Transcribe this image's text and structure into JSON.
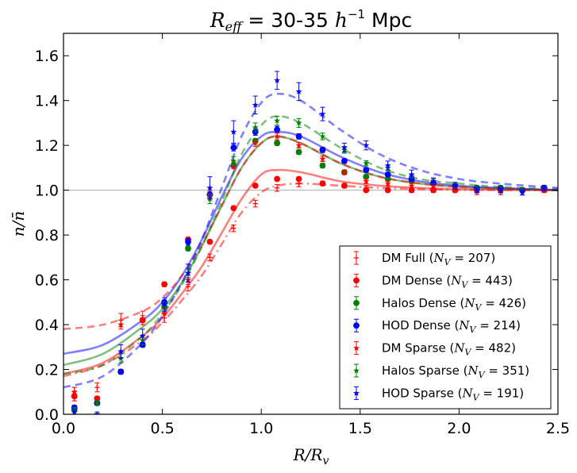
{
  "chart_data": {
    "type": "line",
    "title": "R_eff = 30-35 h⁻¹ Mpc",
    "title_parts": {
      "r": "R",
      "sub": "eff",
      "mid": " = 30-35 ",
      "h": "h",
      "sup": "−1",
      "unit": " Mpc"
    },
    "xlabel": "R/R_v",
    "xlabel_parts": {
      "a": "R/R",
      "sub": "v"
    },
    "ylabel": "n/n̄",
    "xlim": [
      0.0,
      2.5
    ],
    "ylim": [
      0.0,
      1.7
    ],
    "xticks": [
      "0.0",
      "0.5",
      "1.0",
      "1.5",
      "2.0",
      "2.5"
    ],
    "yticks": [
      "0.0",
      "0.2",
      "0.4",
      "0.6",
      "0.8",
      "1.0",
      "1.2",
      "1.4",
      "1.6"
    ],
    "reference_line": 1.0,
    "legend_position": "lower-right",
    "colors": {
      "red": "#ff0000",
      "green": "#008000",
      "blue": "#0000ff",
      "grey": "#bbbbbb"
    },
    "series": [
      {
        "name": "DM Full (N_V = 207)",
        "label_pre": "DM Full (",
        "label_post": " = 207)",
        "color": "#ff0000",
        "marker": "plus",
        "x": [
          0.055,
          0.17,
          0.29,
          0.4,
          0.51,
          0.63,
          0.74,
          0.86,
          0.97,
          1.08,
          1.19,
          1.31,
          1.42,
          1.53,
          1.64,
          1.76,
          1.87,
          1.98,
          2.09,
          2.21,
          2.32,
          2.43
        ],
        "y": [
          0.09,
          0.12,
          0.42,
          0.43,
          0.43,
          0.57,
          0.7,
          0.83,
          0.94,
          1.01,
          1.03,
          1.03,
          1.02,
          1.01,
          1.01,
          1.0,
          1.0,
          1.0,
          0.99,
          0.99,
          1.0,
          1.0
        ],
        "err": [
          0.03,
          0.02,
          0.03,
          0.03,
          0.02,
          0.02,
          0.015,
          0.015,
          0.015,
          0.015,
          0.015,
          0.01,
          0.01,
          0.01,
          0.01,
          0.01,
          0.01,
          0.01,
          0.01,
          0.01,
          0.01,
          0.01
        ]
      },
      {
        "name": "DM Dense (N_V = 443)",
        "label_pre": "DM Dense (",
        "label_post": " = 443)",
        "color": "#ff0000",
        "marker": "circle",
        "x": [
          0.055,
          0.17,
          0.29,
          0.4,
          0.51,
          0.63,
          0.74,
          0.86,
          0.97,
          1.08,
          1.19,
          1.31,
          1.42,
          1.53,
          1.64,
          1.76,
          1.87,
          1.98,
          2.09,
          2.21,
          2.32,
          2.43
        ],
        "y": [
          0.08,
          0.07,
          0.19,
          0.42,
          0.58,
          0.78,
          0.77,
          0.92,
          1.02,
          1.05,
          1.05,
          1.03,
          1.02,
          1.0,
          1.0,
          1.0,
          1.0,
          1.0,
          1.0,
          1.0,
          1.0,
          1.0
        ],
        "err": [
          0.02,
          0.01,
          0.01,
          0.01,
          0.01,
          0.01,
          0.008,
          0.008,
          0.008,
          0.008,
          0.008,
          0.008,
          0.006,
          0.006,
          0.006,
          0.006,
          0.006,
          0.006,
          0.006,
          0.006,
          0.006,
          0.006
        ]
      },
      {
        "name": "Halos Dense (N_V = 426)",
        "label_pre": "Halos Dense (",
        "label_post": " = 426)",
        "color": "#008000",
        "marker": "circle",
        "x": [
          0.055,
          0.17,
          0.29,
          0.4,
          0.51,
          0.63,
          0.74,
          0.86,
          0.97,
          1.08,
          1.19,
          1.31,
          1.42,
          1.53,
          1.64,
          1.76,
          1.87,
          1.98,
          2.09,
          2.21,
          2.32,
          2.43
        ],
        "y": [
          0.02,
          0.05,
          0.19,
          0.31,
          0.48,
          0.74,
          0.98,
          1.11,
          1.22,
          1.21,
          1.17,
          1.11,
          1.08,
          1.06,
          1.05,
          1.04,
          1.03,
          1.02,
          1.01,
          1.01,
          1.0,
          1.01
        ],
        "err": [
          0.01,
          0.01,
          0.01,
          0.01,
          0.01,
          0.01,
          0.01,
          0.01,
          0.01,
          0.01,
          0.01,
          0.01,
          0.008,
          0.008,
          0.008,
          0.008,
          0.008,
          0.008,
          0.008,
          0.008,
          0.008,
          0.008
        ]
      },
      {
        "name": "HOD Dense (N_V = 214)",
        "label_pre": "HOD Dense (",
        "label_post": " = 214)",
        "color": "#0000ff",
        "marker": "circle",
        "x": [
          0.055,
          0.17,
          0.29,
          0.4,
          0.51,
          0.63,
          0.74,
          0.86,
          0.97,
          1.08,
          1.19,
          1.31,
          1.42,
          1.53,
          1.64,
          1.76,
          1.87,
          1.98,
          2.09,
          2.21,
          2.32,
          2.43
        ],
        "y": [
          0.03,
          0.05,
          0.19,
          0.31,
          0.5,
          0.77,
          0.98,
          1.19,
          1.26,
          1.27,
          1.24,
          1.18,
          1.13,
          1.09,
          1.07,
          1.05,
          1.03,
          1.02,
          1.01,
          1.01,
          1.0,
          1.01
        ],
        "err": [
          0.01,
          0.01,
          0.01,
          0.01,
          0.01,
          0.015,
          0.015,
          0.015,
          0.015,
          0.015,
          0.012,
          0.012,
          0.01,
          0.01,
          0.01,
          0.01,
          0.01,
          0.01,
          0.01,
          0.01,
          0.01,
          0.01
        ]
      },
      {
        "name": "DM Sparse (N_V = 482)",
        "label_pre": "DM Sparse (",
        "label_post": " = 482)",
        "color": "#ff0000",
        "marker": "star",
        "x": [
          0.055,
          0.17,
          0.29,
          0.4,
          0.51,
          0.63,
          0.74,
          0.86,
          0.97,
          1.08,
          1.19,
          1.31,
          1.42,
          1.53,
          1.64,
          1.76,
          1.87,
          1.98,
          2.09,
          2.21,
          2.32,
          2.43
        ],
        "y": [
          0.1,
          0.07,
          0.4,
          0.42,
          0.45,
          0.6,
          0.98,
          1.11,
          1.21,
          1.24,
          1.2,
          1.14,
          1.08,
          1.04,
          1.03,
          1.02,
          1.02,
          1.01,
          1.01,
          1.0,
          1.0,
          1.0
        ],
        "err": [
          0.02,
          0.01,
          0.02,
          0.02,
          0.02,
          0.02,
          0.015,
          0.015,
          0.015,
          0.015,
          0.012,
          0.012,
          0.01,
          0.01,
          0.01,
          0.01,
          0.01,
          0.01,
          0.01,
          0.01,
          0.01,
          0.01
        ]
      },
      {
        "name": "Halos Sparse (N_V = 351)",
        "label_pre": "Halos Sparse (",
        "label_post": " = 351)",
        "color": "#008000",
        "marker": "star",
        "x": [
          0.055,
          0.17,
          0.29,
          0.4,
          0.51,
          0.63,
          0.74,
          0.86,
          0.97,
          1.08,
          1.19,
          1.31,
          1.42,
          1.53,
          1.64,
          1.76,
          1.87,
          1.98,
          2.09,
          2.21,
          2.32,
          2.43
        ],
        "y": [
          0.02,
          0.05,
          0.25,
          0.33,
          0.48,
          0.63,
          0.96,
          1.13,
          1.28,
          1.31,
          1.3,
          1.24,
          1.18,
          1.12,
          1.1,
          1.06,
          1.04,
          1.02,
          1.01,
          1.01,
          1.0,
          1.01
        ],
        "err": [
          0.01,
          0.01,
          0.02,
          0.02,
          0.02,
          0.02,
          0.02,
          0.02,
          0.02,
          0.02,
          0.02,
          0.015,
          0.015,
          0.012,
          0.012,
          0.01,
          0.01,
          0.01,
          0.01,
          0.01,
          0.01,
          0.01
        ]
      },
      {
        "name": "HOD Sparse (N_V = 191)",
        "label_pre": "HOD Sparse (",
        "label_post": " = 191)",
        "color": "#0000ff",
        "marker": "star",
        "x": [
          0.055,
          0.17,
          0.29,
          0.4,
          0.51,
          0.63,
          0.74,
          0.86,
          0.97,
          1.08,
          1.19,
          1.31,
          1.42,
          1.53,
          1.64,
          1.76,
          1.87,
          1.98,
          2.09,
          2.21,
          2.32,
          2.43
        ],
        "y": [
          0.01,
          0.0,
          0.28,
          0.35,
          0.49,
          0.63,
          1.01,
          1.26,
          1.38,
          1.49,
          1.44,
          1.34,
          1.19,
          1.2,
          1.11,
          1.07,
          1.04,
          1.02,
          1.0,
          1.0,
          0.99,
          1.01
        ],
        "err": [
          0.01,
          0.01,
          0.03,
          0.03,
          0.03,
          0.04,
          0.05,
          0.05,
          0.04,
          0.04,
          0.04,
          0.03,
          0.02,
          0.02,
          0.02,
          0.02,
          0.015,
          0.015,
          0.012,
          0.012,
          0.012,
          0.012
        ]
      }
    ],
    "model_curves": [
      {
        "name": "DM Full model",
        "color": "#ff0000",
        "style": "dashdot",
        "x": [
          0.0,
          0.2,
          0.4,
          0.5,
          0.6,
          0.7,
          0.8,
          0.9,
          1.0,
          1.08,
          1.2,
          1.4,
          1.6,
          1.8,
          2.0,
          2.2,
          2.5
        ],
        "y": [
          0.17,
          0.22,
          0.33,
          0.41,
          0.51,
          0.62,
          0.76,
          0.9,
          0.99,
          1.02,
          1.03,
          1.02,
          1.01,
          1.005,
          1.002,
          1.001,
          1.0
        ]
      },
      {
        "name": "DM Dense model",
        "color": "#ff0000",
        "style": "solid",
        "x": [
          0.0,
          0.2,
          0.4,
          0.5,
          0.6,
          0.7,
          0.8,
          0.9,
          1.0,
          1.08,
          1.2,
          1.4,
          1.6,
          1.8,
          2.0,
          2.2,
          2.5
        ],
        "y": [
          0.18,
          0.23,
          0.35,
          0.43,
          0.54,
          0.66,
          0.81,
          0.96,
          1.07,
          1.09,
          1.08,
          1.04,
          1.02,
          1.01,
          1.005,
          1.002,
          1.0
        ]
      },
      {
        "name": "Halos Dense model",
        "color": "#008000",
        "style": "solid",
        "x": [
          0.0,
          0.2,
          0.4,
          0.5,
          0.6,
          0.7,
          0.8,
          0.9,
          1.0,
          1.08,
          1.2,
          1.4,
          1.6,
          1.8,
          2.0,
          2.2,
          2.5
        ],
        "y": [
          0.22,
          0.27,
          0.39,
          0.47,
          0.59,
          0.75,
          0.93,
          1.1,
          1.21,
          1.24,
          1.21,
          1.12,
          1.06,
          1.03,
          1.015,
          1.008,
          1.0
        ]
      },
      {
        "name": "HOD Dense model",
        "color": "#0000ff",
        "style": "solid",
        "x": [
          0.0,
          0.2,
          0.4,
          0.5,
          0.6,
          0.7,
          0.8,
          0.9,
          1.0,
          1.08,
          1.2,
          1.4,
          1.6,
          1.8,
          2.0,
          2.2,
          2.5
        ],
        "y": [
          0.27,
          0.31,
          0.42,
          0.5,
          0.62,
          0.78,
          0.97,
          1.14,
          1.24,
          1.26,
          1.24,
          1.15,
          1.08,
          1.04,
          1.02,
          1.01,
          1.0
        ]
      },
      {
        "name": "DM Sparse model",
        "color": "#ff0000",
        "style": "dashed",
        "x": [
          0.0,
          0.2,
          0.4,
          0.5,
          0.6,
          0.7,
          0.8,
          0.9,
          1.0,
          1.08,
          1.2,
          1.4,
          1.6,
          1.8,
          2.0,
          2.2,
          2.5
        ],
        "y": [
          0.38,
          0.4,
          0.46,
          0.52,
          0.62,
          0.76,
          0.93,
          1.1,
          1.21,
          1.24,
          1.21,
          1.12,
          1.06,
          1.03,
          1.015,
          1.008,
          1.0
        ]
      },
      {
        "name": "Halos Sparse model",
        "color": "#008000",
        "style": "dashed",
        "x": [
          0.0,
          0.2,
          0.4,
          0.5,
          0.6,
          0.7,
          0.8,
          0.9,
          1.0,
          1.08,
          1.2,
          1.4,
          1.6,
          1.8,
          2.0,
          2.2,
          2.5
        ],
        "y": [
          0.18,
          0.22,
          0.35,
          0.45,
          0.58,
          0.75,
          0.95,
          1.16,
          1.29,
          1.33,
          1.3,
          1.19,
          1.1,
          1.05,
          1.03,
          1.015,
          1.005
        ]
      },
      {
        "name": "HOD Sparse model",
        "color": "#0000ff",
        "style": "dashed",
        "x": [
          0.0,
          0.2,
          0.4,
          0.5,
          0.6,
          0.7,
          0.8,
          0.9,
          1.0,
          1.08,
          1.2,
          1.4,
          1.6,
          1.8,
          2.0,
          2.2,
          2.5
        ],
        "y": [
          0.12,
          0.17,
          0.32,
          0.44,
          0.59,
          0.78,
          1.01,
          1.24,
          1.39,
          1.43,
          1.4,
          1.27,
          1.16,
          1.09,
          1.05,
          1.03,
          1.01
        ]
      }
    ]
  }
}
